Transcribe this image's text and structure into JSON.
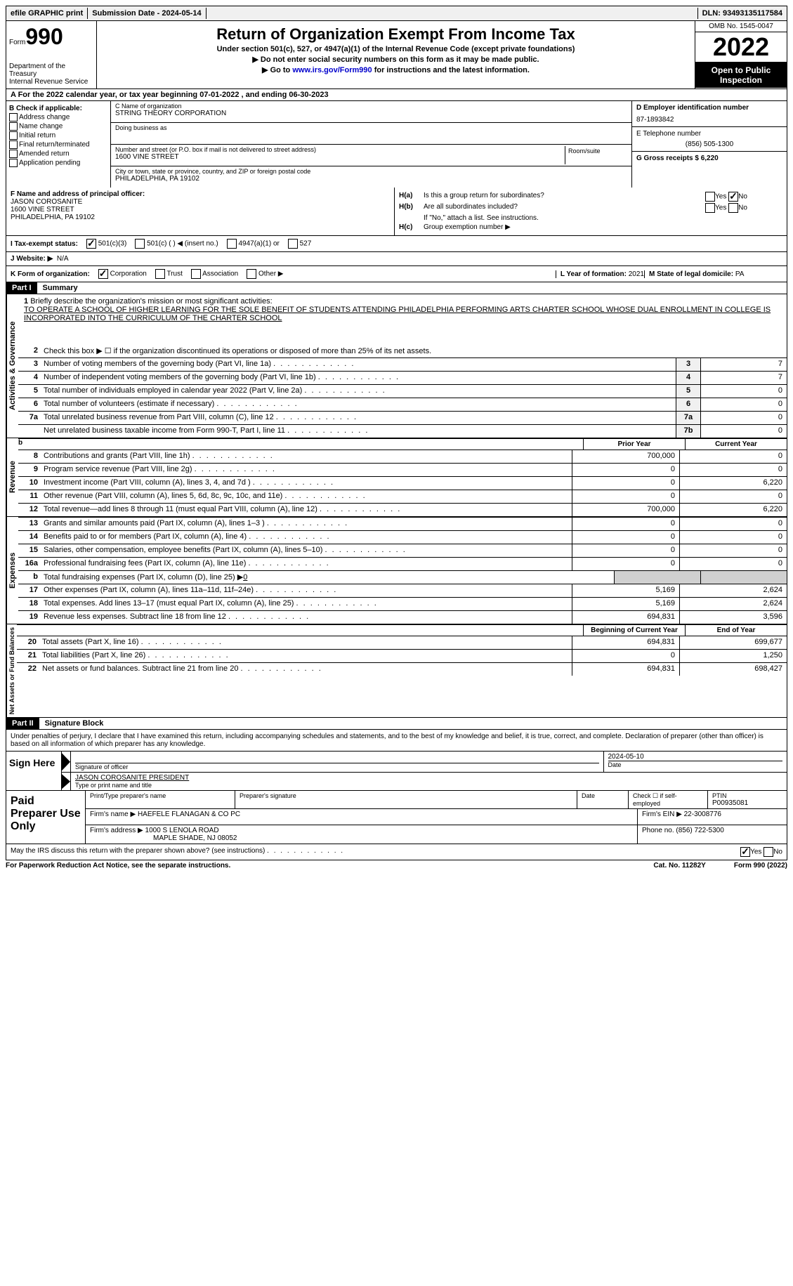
{
  "topbar": {
    "efile": "efile GRAPHIC print",
    "subdate_label": "Submission Date - ",
    "subdate": "2024-05-14",
    "dln_label": "DLN: ",
    "dln": "93493135117584"
  },
  "header": {
    "form_label": "Form",
    "form_num": "990",
    "dept": "Department of the Treasury",
    "irs": "Internal Revenue Service",
    "title": "Return of Organization Exempt From Income Tax",
    "sub1": "Under section 501(c), 527, or 4947(a)(1) of the Internal Revenue Code (except private foundations)",
    "sub2": "▶ Do not enter social security numbers on this form as it may be made public.",
    "sub3_pre": "▶ Go to ",
    "sub3_link": "www.irs.gov/Form990",
    "sub3_post": " for instructions and the latest information.",
    "omb": "OMB No. 1545-0047",
    "year": "2022",
    "open": "Open to Public Inspection"
  },
  "rowA": {
    "text": "A  For the 2022 calendar year, or tax year beginning 07-01-2022   , and ending 06-30-2023"
  },
  "colB": {
    "label": "B Check if applicable:",
    "items": [
      "Address change",
      "Name change",
      "Initial return",
      "Final return/terminated",
      "Amended return",
      "Application pending"
    ],
    "app_pending_checked": "☐"
  },
  "colC": {
    "name_label": "C Name of organization",
    "name": "STRING THEORY CORPORATION",
    "dba_label": "Doing business as",
    "dba": "",
    "addr_label": "Number and street (or P.O. box if mail is not delivered to street address)",
    "addr": "1600 VINE STREET",
    "room_label": "Room/suite",
    "city_label": "City or town, state or province, country, and ZIP or foreign postal code",
    "city": "PHILADELPHIA, PA  19102"
  },
  "colD": {
    "ein_label": "D Employer identification number",
    "ein": "87-1893842",
    "tel_label": "E Telephone number",
    "tel": "(856) 505-1300",
    "gross_label": "G Gross receipts $ ",
    "gross": "6,220"
  },
  "rowF": {
    "label": "F  Name and address of principal officer:",
    "name": "JASON COROSANITE",
    "addr1": "1600 VINE STREET",
    "addr2": "PHILADELPHIA, PA  19102"
  },
  "rowH": {
    "ha_label": "H(a)",
    "ha_text": "Is this a group return for subordinates?",
    "hb_label": "H(b)",
    "hb_text": "Are all subordinates included?",
    "hb_note": "If \"No,\" attach a list. See instructions.",
    "hc_label": "H(c)",
    "hc_text": "Group exemption number ▶"
  },
  "rowI": {
    "label": "I  Tax-exempt status:",
    "opts": [
      "501(c)(3)",
      "501(c) (  ) ◀ (insert no.)",
      "4947(a)(1) or",
      "527"
    ]
  },
  "rowJ": {
    "label": "J  Website: ▶",
    "val": "N/A"
  },
  "rowK": {
    "label": "K Form of organization:",
    "opts": [
      "Corporation",
      "Trust",
      "Association",
      "Other ▶"
    ],
    "l_label": "L Year of formation: ",
    "l_val": "2021",
    "m_label": "M State of legal domicile: ",
    "m_val": "PA"
  },
  "parts": {
    "p1": "Part I",
    "p1_title": "Summary",
    "p2": "Part II",
    "p2_title": "Signature Block"
  },
  "sideLabels": {
    "ag": "Activities & Governance",
    "rev": "Revenue",
    "exp": "Expenses",
    "na": "Net Assets or Fund Balances"
  },
  "summary": {
    "l1_label": "Briefly describe the organization's mission or most significant activities:",
    "l1_text": "TO OPERATE A SCHOOL OF HIGHER LEARNING FOR THE SOLE BENEFIT OF STUDENTS ATTENDING PHILADELPHIA PERFORMING ARTS CHARTER SCHOOL WHOSE DUAL ENROLLMENT IN COLLEGE IS INCORPORATED INTO THE CURRICULUM OF THE CHARTER SCHOOL",
    "l2": "Check this box ▶ ☐ if the organization discontinued its operations or disposed of more than 25% of its net assets.",
    "lines": [
      {
        "n": "3",
        "t": "Number of voting members of the governing body (Part VI, line 1a)",
        "b": "3",
        "v": "7"
      },
      {
        "n": "4",
        "t": "Number of independent voting members of the governing body (Part VI, line 1b)",
        "b": "4",
        "v": "7"
      },
      {
        "n": "5",
        "t": "Total number of individuals employed in calendar year 2022 (Part V, line 2a)",
        "b": "5",
        "v": "0"
      },
      {
        "n": "6",
        "t": "Total number of volunteers (estimate if necessary)",
        "b": "6",
        "v": "0"
      },
      {
        "n": "7a",
        "t": "Total unrelated business revenue from Part VIII, column (C), line 12",
        "b": "7a",
        "v": "0"
      },
      {
        "n": "",
        "t": "Net unrelated business taxable income from Form 990-T, Part I, line 11",
        "b": "7b",
        "v": "0"
      }
    ],
    "col_prior": "Prior Year",
    "col_curr": "Current Year",
    "rev": [
      {
        "n": "8",
        "t": "Contributions and grants (Part VIII, line 1h)",
        "p": "700,000",
        "c": "0"
      },
      {
        "n": "9",
        "t": "Program service revenue (Part VIII, line 2g)",
        "p": "0",
        "c": "0"
      },
      {
        "n": "10",
        "t": "Investment income (Part VIII, column (A), lines 3, 4, and 7d )",
        "p": "0",
        "c": "6,220"
      },
      {
        "n": "11",
        "t": "Other revenue (Part VIII, column (A), lines 5, 6d, 8c, 9c, 10c, and 11e)",
        "p": "0",
        "c": "0"
      },
      {
        "n": "12",
        "t": "Total revenue—add lines 8 through 11 (must equal Part VIII, column (A), line 12)",
        "p": "700,000",
        "c": "6,220"
      }
    ],
    "exp": [
      {
        "n": "13",
        "t": "Grants and similar amounts paid (Part IX, column (A), lines 1–3 )",
        "p": "0",
        "c": "0"
      },
      {
        "n": "14",
        "t": "Benefits paid to or for members (Part IX, column (A), line 4)",
        "p": "0",
        "c": "0"
      },
      {
        "n": "15",
        "t": "Salaries, other compensation, employee benefits (Part IX, column (A), lines 5–10)",
        "p": "0",
        "c": "0"
      },
      {
        "n": "16a",
        "t": "Professional fundraising fees (Part IX, column (A), line 11e)",
        "p": "0",
        "c": "0"
      }
    ],
    "l16b_pre": "Total fundraising expenses (Part IX, column (D), line 25) ▶",
    "l16b_val": "0",
    "exp2": [
      {
        "n": "17",
        "t": "Other expenses (Part IX, column (A), lines 11a–11d, 11f–24e)",
        "p": "5,169",
        "c": "2,624"
      },
      {
        "n": "18",
        "t": "Total expenses. Add lines 13–17 (must equal Part IX, column (A), line 25)",
        "p": "5,169",
        "c": "2,624"
      },
      {
        "n": "19",
        "t": "Revenue less expenses. Subtract line 18 from line 12",
        "p": "694,831",
        "c": "3,596"
      }
    ],
    "col_beg": "Beginning of Current Year",
    "col_end": "End of Year",
    "na": [
      {
        "n": "20",
        "t": "Total assets (Part X, line 16)",
        "p": "694,831",
        "c": "699,677"
      },
      {
        "n": "21",
        "t": "Total liabilities (Part X, line 26)",
        "p": "0",
        "c": "1,250"
      },
      {
        "n": "22",
        "t": "Net assets or fund balances. Subtract line 21 from line 20",
        "p": "694,831",
        "c": "698,427"
      }
    ]
  },
  "sig": {
    "decl": "Under penalties of perjury, I declare that I have examined this return, including accompanying schedules and statements, and to the best of my knowledge and belief, it is true, correct, and complete. Declaration of preparer (other than officer) is based on all information of which preparer has any knowledge.",
    "sign_here": "Sign Here",
    "sig_label": "Signature of officer",
    "date_label": "Date",
    "date": "2024-05-10",
    "name": "JASON COROSANITE  PRESIDENT",
    "name_label": "Type or print name and title"
  },
  "prep": {
    "label": "Paid Preparer Use Only",
    "r1": {
      "c1_label": "Print/Type preparer's name",
      "c2_label": "Preparer's signature",
      "c3_label": "Date",
      "c4_label": "Check ☐ if self-employed",
      "c5_label": "PTIN",
      "c5_val": "P00935081"
    },
    "r2": {
      "firm_label": "Firm's name    ▶ ",
      "firm": "HAEFELE FLANAGAN & CO PC",
      "ein_label": "Firm's EIN ▶ ",
      "ein": "22-3008776"
    },
    "r3": {
      "addr_label": "Firm's address ▶ ",
      "addr1": "1000 S LENOLA ROAD",
      "addr2": "MAPLE SHADE, NJ  08052",
      "phone_label": "Phone no. ",
      "phone": "(856) 722-5300"
    }
  },
  "bottom": {
    "q": "May the IRS discuss this return with the preparer shown above? (see instructions)",
    "yes": "Yes",
    "no": "No"
  },
  "footer": {
    "left": "For Paperwork Reduction Act Notice, see the separate instructions.",
    "mid": "Cat. No. 11282Y",
    "right": "Form 990 (2022)"
  }
}
